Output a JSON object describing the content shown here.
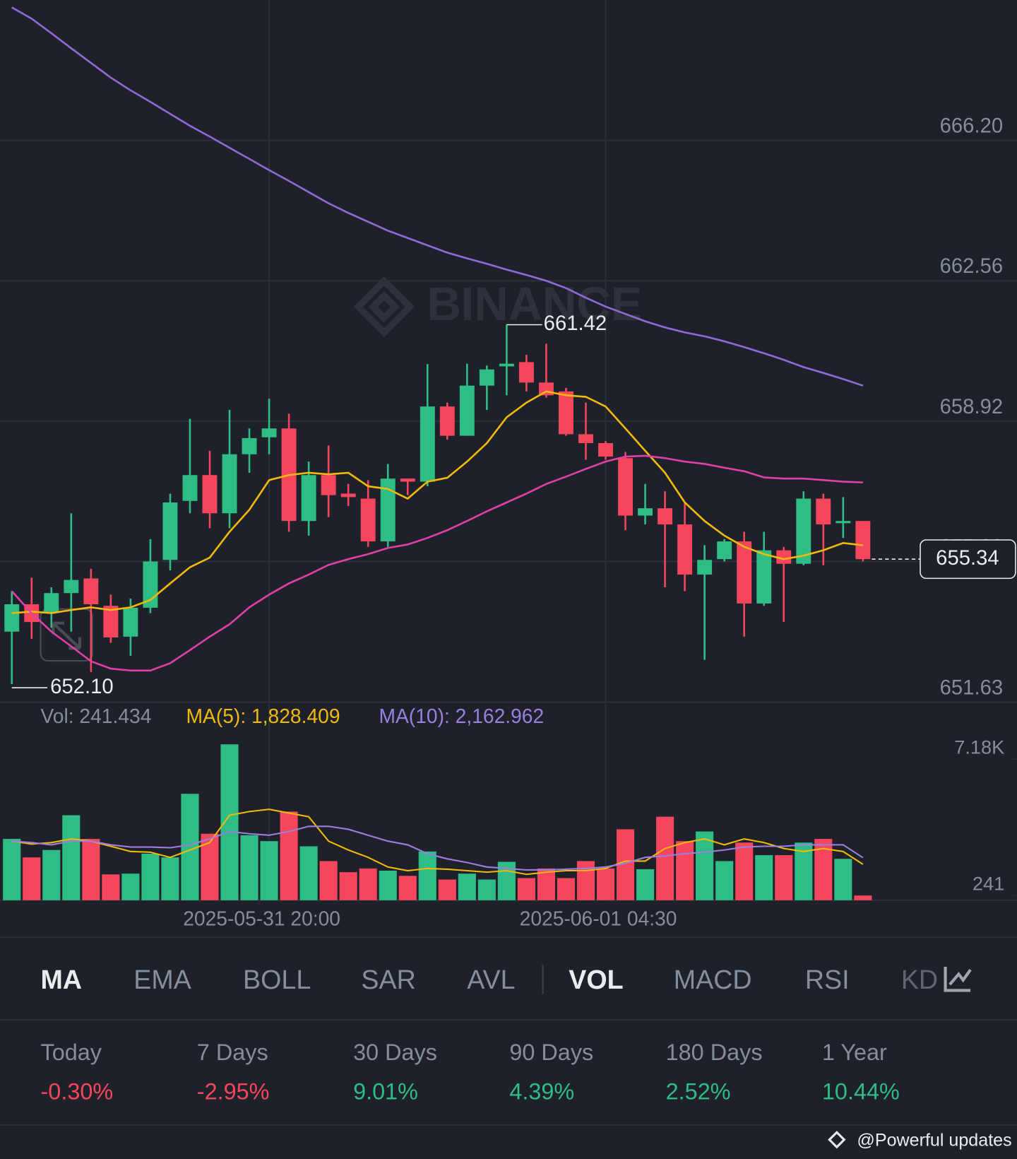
{
  "chart_data": [
    {
      "type": "candlestick",
      "watermark": "BINANCE",
      "open": [
        653.46,
        654.17,
        653.94,
        654.46,
        654.84,
        654.13,
        653.33,
        654.08,
        655.32,
        656.85,
        657.52,
        656.53,
        658.06,
        658.5,
        658.73,
        656.33,
        657.52,
        657.04,
        656.91,
        655.8,
        657.43,
        657.35,
        659.3,
        658.54,
        659.84,
        660.34,
        660.45,
        659.92,
        659.69,
        658.58,
        658.35,
        657.96,
        656.47,
        656.66,
        656.24,
        654.94,
        655.34,
        655.8,
        654.19,
        655.57,
        655.22,
        656.91,
        656.28,
        656.33
      ],
      "high": [
        654.51,
        654.86,
        654.61,
        656.53,
        655.09,
        654.42,
        654.32,
        655.86,
        657.04,
        658.98,
        658.15,
        659.21,
        658.73,
        659.5,
        659.11,
        657.87,
        658.29,
        657.29,
        657.39,
        657.81,
        657.43,
        660.4,
        659.4,
        660.41,
        660.36,
        661.42,
        660.64,
        660.93,
        659.78,
        659.4,
        658.4,
        658.12,
        657.29,
        657.1,
        656.81,
        655.7,
        655.86,
        656.05,
        656.05,
        655.66,
        657.1,
        657.04,
        656.95,
        656.33
      ],
      "low": [
        652.1,
        653.27,
        653.56,
        653.46,
        652.41,
        653.17,
        652.83,
        653.94,
        655.05,
        656.53,
        656.14,
        656.14,
        657.58,
        658.06,
        656.05,
        655.95,
        656.43,
        656.72,
        655.66,
        655.66,
        657.0,
        657.23,
        658.44,
        658.54,
        659.21,
        659.59,
        659.69,
        659.53,
        658.54,
        657.92,
        657.92,
        656.09,
        656.24,
        654.61,
        654.51,
        652.73,
        655.28,
        653.33,
        654.13,
        653.71,
        655.18,
        655.18,
        655.89,
        655.28
      ],
      "close": [
        654.17,
        653.71,
        654.46,
        654.8,
        654.17,
        653.31,
        654.08,
        655.28,
        656.81,
        657.52,
        656.53,
        658.06,
        658.48,
        658.73,
        656.33,
        657.52,
        657.0,
        656.95,
        655.8,
        657.43,
        657.35,
        659.3,
        658.54,
        659.84,
        660.26,
        660.41,
        659.92,
        659.59,
        658.58,
        658.35,
        658.0,
        656.47,
        656.66,
        656.24,
        654.94,
        655.32,
        655.8,
        654.19,
        655.57,
        655.22,
        656.91,
        656.24,
        656.33,
        655.34
      ],
      "up_color": "#2ebd85",
      "down_color": "#f6465d",
      "series": [
        {
          "color": "#f0b90b",
          "values": [
            653.94,
            653.98,
            653.94,
            654.02,
            654.09,
            654.02,
            654.09,
            654.28,
            654.71,
            655.13,
            655.38,
            656.05,
            656.62,
            657.39,
            657.52,
            657.58,
            657.54,
            657.58,
            657.23,
            657.16,
            656.91,
            657.35,
            657.45,
            657.87,
            658.35,
            659.02,
            659.4,
            659.69,
            659.59,
            659.55,
            659.3,
            658.73,
            658.15,
            657.58,
            656.81,
            656.33,
            655.95,
            655.66,
            655.47,
            655.34,
            655.43,
            655.57,
            655.76,
            655.7
          ]
        },
        {
          "color": "#e040a8",
          "values": [
            654.51,
            653.94,
            653.46,
            653.08,
            652.69,
            652.5,
            652.45,
            652.45,
            652.64,
            652.98,
            653.33,
            653.65,
            654.09,
            654.42,
            654.71,
            654.94,
            655.19,
            655.34,
            655.47,
            655.63,
            655.72,
            655.89,
            656.09,
            656.33,
            656.58,
            656.81,
            657.04,
            657.29,
            657.48,
            657.68,
            657.87,
            658.0,
            658.02,
            657.96,
            657.87,
            657.81,
            657.71,
            657.62,
            657.46,
            657.43,
            657.43,
            657.39,
            657.35,
            657.33
          ]
        },
        {
          "color": "#8e6bd8",
          "values": [
            669.65,
            669.36,
            668.98,
            668.59,
            668.21,
            667.83,
            667.5,
            667.2,
            666.89,
            666.58,
            666.3,
            666.01,
            665.72,
            665.43,
            665.15,
            664.86,
            664.57,
            664.32,
            664.09,
            663.86,
            663.67,
            663.48,
            663.29,
            663.14,
            663.0,
            662.85,
            662.71,
            662.56,
            662.37,
            662.12,
            661.89,
            661.7,
            661.51,
            661.35,
            661.22,
            661.12,
            660.99,
            660.84,
            660.68,
            660.51,
            660.32,
            660.17,
            660.01,
            659.84
          ]
        }
      ],
      "annotations": [
        {
          "value": 661.42,
          "label": "661.42"
        },
        {
          "value": 652.1,
          "label": "652.10"
        }
      ],
      "last_price": 655.34,
      "ylim": [
        651.63,
        669.84
      ],
      "yticks": [
        {
          "value": 666.2,
          "label": "666.20"
        },
        662.56,
        658.92,
        655.28,
        651.63
      ],
      "grid": true
    },
    {
      "type": "bar",
      "legend_label": "Vol: 241.434",
      "categories": [
        null,
        null,
        null,
        null,
        null,
        null,
        null,
        null,
        null,
        null,
        null,
        null,
        null,
        "2025-05-31 20:00",
        null,
        null,
        null,
        null,
        null,
        null,
        null,
        null,
        null,
        null,
        null,
        null,
        null,
        null,
        null,
        null,
        "2025-06-01 04:30",
        null,
        null,
        null,
        null,
        null,
        null,
        null,
        null,
        null,
        null,
        null,
        null,
        null
      ],
      "values": [
        3120,
        2180,
        2556,
        4323,
        3120,
        1316,
        1353,
        2368,
        2180,
        5413,
        3383,
        7931,
        3308,
        3007,
        4511,
        2744,
        1992,
        1428,
        1616,
        1504,
        1240,
        2481,
        1053,
        1353,
        1053,
        1955,
        1128,
        1616,
        1128,
        1992,
        1616,
        3609,
        1579,
        4248,
        3007,
        3496,
        1992,
        2932,
        2293,
        2293,
        2932,
        3120,
        2105,
        241.434
      ],
      "series": [
        {
          "name": "MA(5): 1,828.409",
          "color": "#f0b90b",
          "values": [
            3007,
            2857,
            2932,
            3120,
            3007,
            2744,
            2481,
            2443,
            2180,
            2556,
            2932,
            4323,
            4511,
            4624,
            4436,
            4248,
            3007,
            2556,
            2180,
            1692,
            1504,
            1616,
            1579,
            1504,
            1428,
            1504,
            1316,
            1428,
            1504,
            1504,
            1616,
            1992,
            1992,
            2631,
            2932,
            3120,
            2819,
            3120,
            2932,
            2631,
            2481,
            2631,
            2481,
            1828.409
          ]
        },
        {
          "name": "MA(10): 2,162.962",
          "color": "#9b7fe0",
          "values": [
            3007,
            2932,
            2819,
            3007,
            3007,
            2819,
            2706,
            2706,
            2669,
            2819,
            3120,
            3496,
            3383,
            3308,
            3496,
            3759,
            3759,
            3609,
            3308,
            3007,
            2819,
            2368,
            2105,
            1917,
            1692,
            1616,
            1541,
            1541,
            1579,
            1616,
            1692,
            1880,
            2180,
            2255,
            2368,
            2443,
            2556,
            2706,
            2744,
            2744,
            2819,
            2819,
            2819,
            2162.962
          ]
        }
      ],
      "ylim": [
        0,
        8570
      ],
      "yticks": [
        {
          "value": 7180,
          "label": "7.18K"
        },
        241
      ]
    }
  ],
  "tabs": [
    {
      "label": "MA",
      "active": true
    },
    {
      "label": "EMA",
      "active": false
    },
    {
      "label": "BOLL",
      "active": false
    },
    {
      "label": "SAR",
      "active": false
    },
    {
      "label": "AVL",
      "active": false
    },
    {
      "label": "VOL",
      "active": true
    },
    {
      "label": "MACD",
      "active": false
    },
    {
      "label": "RSI",
      "active": false
    },
    {
      "label": "KD",
      "active": false
    }
  ],
  "performance": [
    {
      "label": "Today",
      "value": "-0.30%",
      "color": "#f6465d"
    },
    {
      "label": "7 Days",
      "value": "-2.95%",
      "color": "#f6465d"
    },
    {
      "label": "30 Days",
      "value": "9.01%",
      "color": "#2ebd85"
    },
    {
      "label": "90 Days",
      "value": "4.39%",
      "color": "#2ebd85"
    },
    {
      "label": "180 Days",
      "value": "2.52%",
      "color": "#2ebd85"
    },
    {
      "label": "1 Year",
      "value": "10.44%",
      "color": "#2ebd85"
    }
  ],
  "footer": "@Powerful updates"
}
